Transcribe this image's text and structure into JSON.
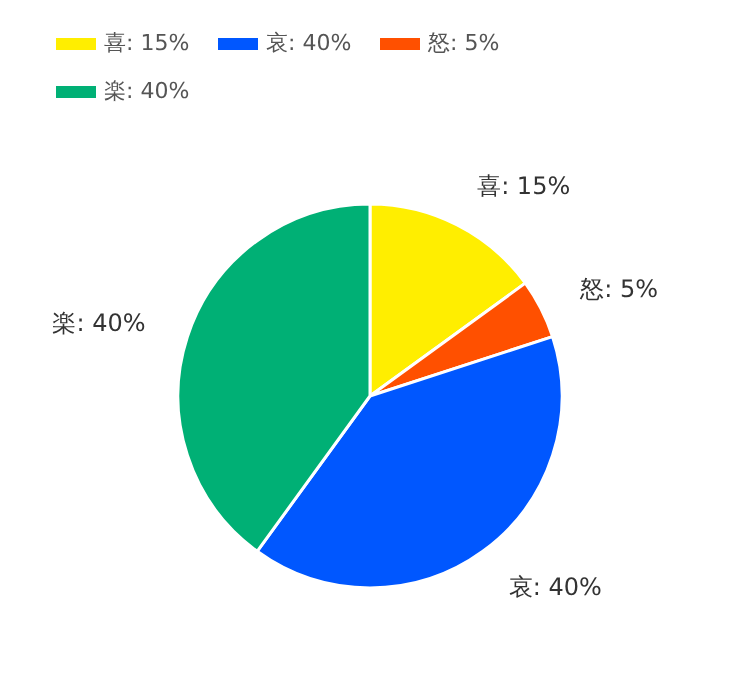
{
  "chart_data": {
    "type": "pie",
    "categories": [
      "喜: 15%",
      "怒: 5%",
      "哀: 40%",
      "楽: 40%"
    ],
    "values": [
      15,
      5,
      40,
      40
    ],
    "colors": [
      "#ffee00",
      "#ff5000",
      "#0057ff",
      "#00b075"
    ],
    "legend": "top left"
  }
}
